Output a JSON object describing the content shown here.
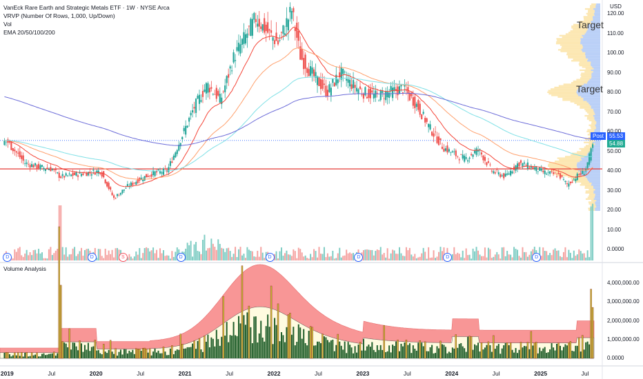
{
  "header": {
    "title": "VanEck Rare Earth and Strategic Metals ETF · 1W · NYSE Arca",
    "indicators": [
      "VRVP (Number Of Rows, 1,000, Up/Down)",
      "Vol",
      "EMA 20/50/100/200"
    ]
  },
  "volume_pane": {
    "title": "Volume Analysis"
  },
  "price_axis": {
    "currency": "USD",
    "labels": [
      "120.00",
      "110.00",
      "100.00",
      "90.00",
      "80.00",
      "70.00",
      "60.00",
      "50.00",
      "40.00",
      "30.00",
      "20.00",
      "10.00",
      "0.0000"
    ],
    "post_label": "Post",
    "post_price": "55.53",
    "last_price": "54.88"
  },
  "volume_axis": {
    "labels": [
      "4,000,000.00",
      "3,000,000.00",
      "2,000,000.00",
      "1,000,000.00",
      "0.0000"
    ]
  },
  "time_axis": {
    "labels": [
      {
        "t": "2019",
        "year": true
      },
      {
        "t": "Jul",
        "year": false
      },
      {
        "t": "2020",
        "year": true
      },
      {
        "t": "Jul",
        "year": false
      },
      {
        "t": "2021",
        "year": true
      },
      {
        "t": "Jul",
        "year": false
      },
      {
        "t": "2022",
        "year": true
      },
      {
        "t": "Jul",
        "year": false
      },
      {
        "t": "2023",
        "year": true
      },
      {
        "t": "Jul",
        "year": false
      },
      {
        "t": "2024",
        "year": true
      },
      {
        "t": "Jul",
        "year": false
      },
      {
        "t": "2025",
        "year": true
      },
      {
        "t": "Jul",
        "year": false
      }
    ]
  },
  "annotations": {
    "target_upper": "Target",
    "target_lower": "Target",
    "dividend_badge": "D",
    "split_badge": "S"
  },
  "colors": {
    "up": "#26a69a",
    "down": "#ef5350",
    "ema20": "#f44336",
    "ema50": "#ff9f6b",
    "ema100": "#7ee0e6",
    "ema200": "#6a6ad8",
    "support_line": "#e53935",
    "price_tag": "#2962ff",
    "last_tag": "#22ab94"
  },
  "chart_data": {
    "type": "candlestick",
    "price_range": [
      0,
      125
    ],
    "support_level": 41,
    "price_path": [
      [
        2019.0,
        55
      ],
      [
        2019.2,
        44
      ],
      [
        2019.35,
        42
      ],
      [
        2019.5,
        41
      ],
      [
        2019.6,
        37
      ],
      [
        2019.75,
        38
      ],
      [
        2019.9,
        39
      ],
      [
        2020.05,
        40
      ],
      [
        2020.2,
        26
      ],
      [
        2020.35,
        32
      ],
      [
        2020.5,
        36
      ],
      [
        2020.65,
        39
      ],
      [
        2020.8,
        40
      ],
      [
        2020.95,
        56
      ],
      [
        2021.1,
        72
      ],
      [
        2021.25,
        84
      ],
      [
        2021.4,
        76
      ],
      [
        2021.55,
        98
      ],
      [
        2021.7,
        110
      ],
      [
        2021.8,
        118
      ],
      [
        2021.9,
        112
      ],
      [
        2022.05,
        105
      ],
      [
        2022.2,
        122
      ],
      [
        2022.3,
        98
      ],
      [
        2022.45,
        88
      ],
      [
        2022.6,
        80
      ],
      [
        2022.75,
        90
      ],
      [
        2022.85,
        85
      ],
      [
        2023.0,
        80
      ],
      [
        2023.15,
        78
      ],
      [
        2023.3,
        80
      ],
      [
        2023.45,
        82
      ],
      [
        2023.6,
        74
      ],
      [
        2023.75,
        62
      ],
      [
        2023.9,
        52
      ],
      [
        2024.05,
        48
      ],
      [
        2024.15,
        46
      ],
      [
        2024.3,
        51
      ],
      [
        2024.45,
        40
      ],
      [
        2024.6,
        37
      ],
      [
        2024.75,
        44
      ],
      [
        2024.9,
        42
      ],
      [
        2025.05,
        39
      ],
      [
        2025.2,
        38
      ],
      [
        2025.3,
        33
      ],
      [
        2025.4,
        37
      ],
      [
        2025.5,
        40
      ],
      [
        2025.56,
        49
      ],
      [
        2025.6,
        55
      ]
    ],
    "dividend_dates": [
      2019.0,
      2019.95,
      2020.95,
      2021.95,
      2022.95,
      2023.95,
      2024.95
    ],
    "split_date": 2020.3
  }
}
